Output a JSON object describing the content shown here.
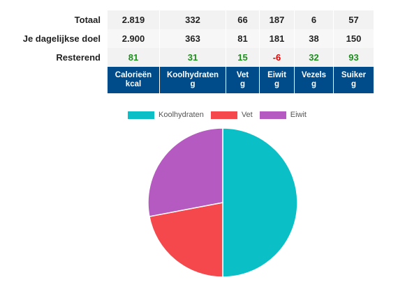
{
  "table": {
    "rows": [
      {
        "label": "Totaal",
        "values": [
          "2.819",
          "332",
          "66",
          "187",
          "6",
          "57"
        ],
        "status": [
          "",
          "",
          "",
          "",
          "",
          ""
        ]
      },
      {
        "label": "Je dagelijkse doel",
        "values": [
          "2.900",
          "363",
          "81",
          "181",
          "38",
          "150"
        ],
        "status": [
          "",
          "",
          "",
          "",
          "",
          ""
        ]
      },
      {
        "label": "Resterend",
        "values": [
          "81",
          "31",
          "15",
          "-6",
          "32",
          "93"
        ],
        "status": [
          "pos",
          "pos",
          "pos",
          "neg",
          "pos",
          "pos"
        ]
      }
    ],
    "headers": [
      {
        "name": "Calorieën",
        "unit": "kcal"
      },
      {
        "name": "Koolhydraten",
        "unit": "g"
      },
      {
        "name": "Vet",
        "unit": "g"
      },
      {
        "name": "Eiwit",
        "unit": "g"
      },
      {
        "name": "Vezels",
        "unit": "g"
      },
      {
        "name": "Suiker",
        "unit": "g"
      }
    ],
    "colors": {
      "header_bg": "#004c8a",
      "positive": "#1a8f1a",
      "negative": "#e00000"
    }
  },
  "chart_data": {
    "type": "pie",
    "legend_position": "top",
    "slices": [
      {
        "name": "Koolhydraten",
        "value": 50,
        "color": "#0bbfc6"
      },
      {
        "name": "Vet",
        "value": 22,
        "color": "#f5484d"
      },
      {
        "name": "Eiwit",
        "value": 28,
        "color": "#b55ac1"
      }
    ]
  }
}
